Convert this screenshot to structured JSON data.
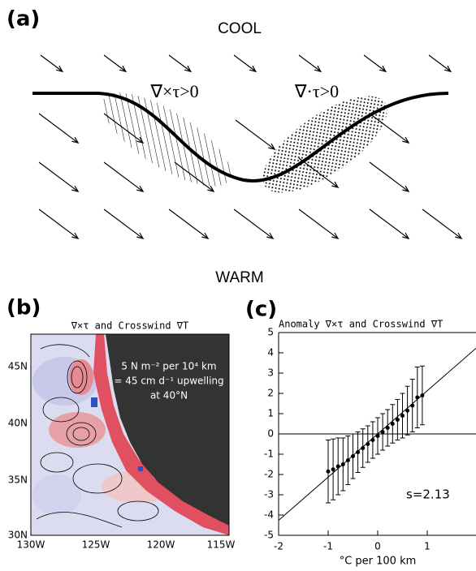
{
  "panel_a": {
    "label": "(a)",
    "top_text": "COOL",
    "bottom_text": "WARM",
    "curl_label": "∇×τ>0",
    "div_label": "∇·τ>0"
  },
  "panel_b": {
    "label": "(b)",
    "title": "∇×τ and Crosswind ∇T",
    "lat_labels": [
      "45N",
      "40N",
      "35N",
      "30N"
    ],
    "lon_labels": [
      "130W",
      "125W",
      "120W",
      "115W"
    ],
    "annotation": [
      "5 N m⁻² per 10⁴ km",
      "= 45 cm d⁻¹ upwelling",
      "at 40°N"
    ]
  },
  "chart_data": {
    "type": "scatter",
    "panel_label": "(c)",
    "title": "Anomaly ∇×τ and Crosswind ∇T",
    "x_label": "°C per 100 km",
    "annotation": "s=2.13",
    "fit_slope": 2.13,
    "x": [
      -1.0,
      -0.9,
      -0.8,
      -0.7,
      -0.6,
      -0.5,
      -0.4,
      -0.3,
      -0.2,
      -0.1,
      0.0,
      0.1,
      0.2,
      0.3,
      0.4,
      0.5,
      0.6,
      0.7,
      0.8,
      0.9
    ],
    "values": [
      -1.85,
      -1.75,
      -1.6,
      -1.5,
      -1.3,
      -1.1,
      -0.9,
      -0.7,
      -0.5,
      -0.3,
      -0.1,
      0.1,
      0.3,
      0.5,
      0.7,
      0.9,
      1.15,
      1.4,
      1.8,
      1.9
    ],
    "errors": [
      1.55,
      1.5,
      1.4,
      1.3,
      1.2,
      1.1,
      1.0,
      0.95,
      0.9,
      0.9,
      0.9,
      0.9,
      0.9,
      0.95,
      1.0,
      1.1,
      1.2,
      1.3,
      1.5,
      1.45
    ],
    "color": "#000000",
    "xlim": [
      -2,
      2
    ],
    "ylim": [
      -5,
      5
    ],
    "xticks": [
      -2,
      -1,
      0,
      1
    ],
    "yticks": [
      -5,
      -4,
      -3,
      -2,
      -1,
      0,
      1,
      2,
      3,
      4,
      5
    ]
  }
}
